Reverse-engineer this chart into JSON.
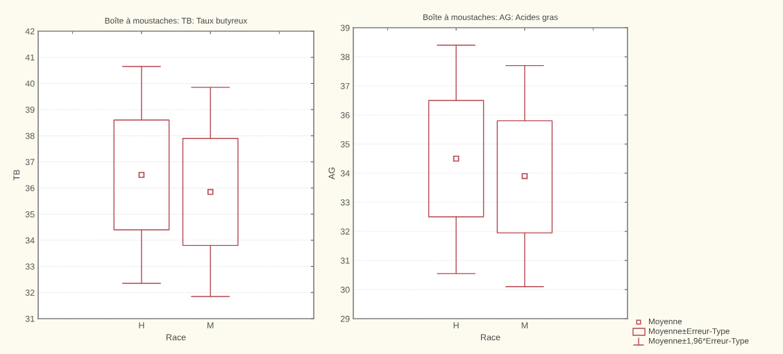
{
  "chart_data": [
    {
      "type": "box",
      "title": "Boîte à moustaches: TB: Taux butyreux",
      "xlabel": "Race",
      "ylabel": "TB",
      "categories": [
        "H",
        "M"
      ],
      "ylim": [
        31,
        42
      ],
      "yticks": [
        31,
        32,
        33,
        34,
        35,
        36,
        37,
        38,
        39,
        40,
        41,
        42
      ],
      "grid": "y",
      "marker": "square",
      "series": [
        {
          "color": "#b5474f",
          "boxes": [
            {
              "low": 32.35,
              "q1": 34.4,
              "q3": 38.6,
              "high": 40.65,
              "mean": 36.5
            },
            {
              "low": 31.85,
              "q1": 33.8,
              "q3": 37.9,
              "high": 39.85,
              "mean": 35.85
            }
          ]
        }
      ]
    },
    {
      "type": "box",
      "title": "Boîte à moustaches: AG: Acides gras",
      "xlabel": "Race",
      "ylabel": "AG",
      "categories": [
        "H",
        "M"
      ],
      "ylim": [
        29,
        39
      ],
      "yticks": [
        29,
        30,
        31,
        32,
        33,
        34,
        35,
        36,
        37,
        38,
        39
      ],
      "grid": "y",
      "marker": "square",
      "annotations": [
        "Moyenne",
        "Moyenne±Erreur-Type",
        "Moyenne±1,96*Erreur-Type"
      ],
      "series": [
        {
          "color": "#b5474f",
          "boxes": [
            {
              "low": 30.55,
              "q1": 32.5,
              "q3": 36.5,
              "high": 38.4,
              "mean": 34.5
            },
            {
              "low": 30.1,
              "q1": 31.95,
              "q3": 35.8,
              "high": 37.7,
              "mean": 33.9
            }
          ]
        }
      ]
    }
  ]
}
